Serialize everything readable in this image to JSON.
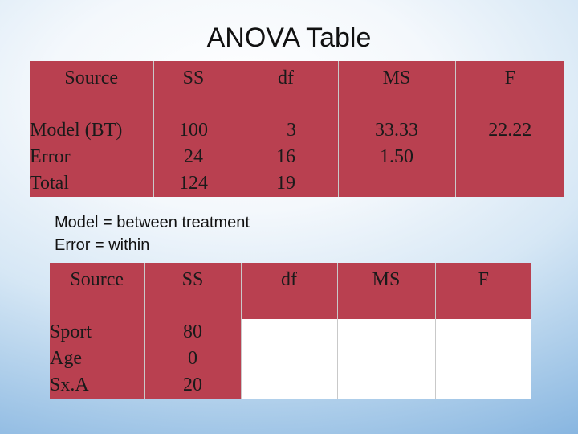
{
  "title": "ANOVA Table",
  "colors": {
    "header_fill": "#b94050",
    "blank_cell": "#ffffff"
  },
  "table1": {
    "headers": [
      "Source",
      "SS",
      "df",
      "MS",
      "F"
    ],
    "rows": [
      {
        "source": "Model (BT)",
        "ss": "100",
        "df": "3",
        "ms": "33.33",
        "f": "22.22"
      },
      {
        "source": "Error",
        "ss": "24",
        "df": "16",
        "ms": "1.50",
        "f": ""
      },
      {
        "source": "Total",
        "ss": "124",
        "df": "19",
        "ms": "",
        "f": ""
      }
    ]
  },
  "notes": [
    "Model = between treatment",
    "Error = within"
  ],
  "table2": {
    "headers": [
      "Source",
      "SS",
      "df",
      "MS",
      "F"
    ],
    "rows": [
      {
        "source": "Sport",
        "ss": "80"
      },
      {
        "source": "Age",
        "ss": "0"
      },
      {
        "source": "Sx.A",
        "ss": "20"
      }
    ]
  }
}
